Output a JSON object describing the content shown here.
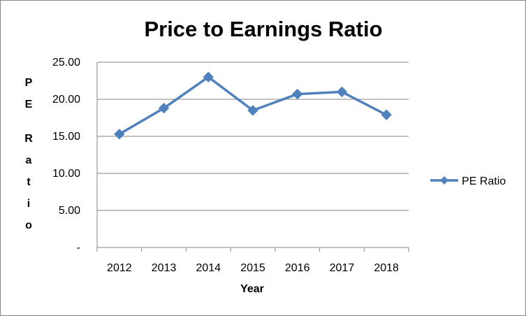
{
  "chart_data": {
    "type": "line",
    "title": "Price to Earnings Ratio",
    "xlabel": "Year",
    "ylabel": "PE Ratio",
    "categories": [
      "2012",
      "2013",
      "2014",
      "2015",
      "2016",
      "2017",
      "2018"
    ],
    "series": [
      {
        "name": "PE Ratio",
        "values": [
          15.3,
          18.8,
          23.0,
          18.5,
          20.7,
          21.0,
          17.9
        ],
        "color": "#4F81BD",
        "marker": "diamond"
      }
    ],
    "ylim": [
      0,
      25
    ],
    "yticks": [
      "-",
      "5.00",
      "10.00",
      "15.00",
      "20.00",
      "25.00"
    ],
    "grid": true,
    "legend": "right"
  }
}
